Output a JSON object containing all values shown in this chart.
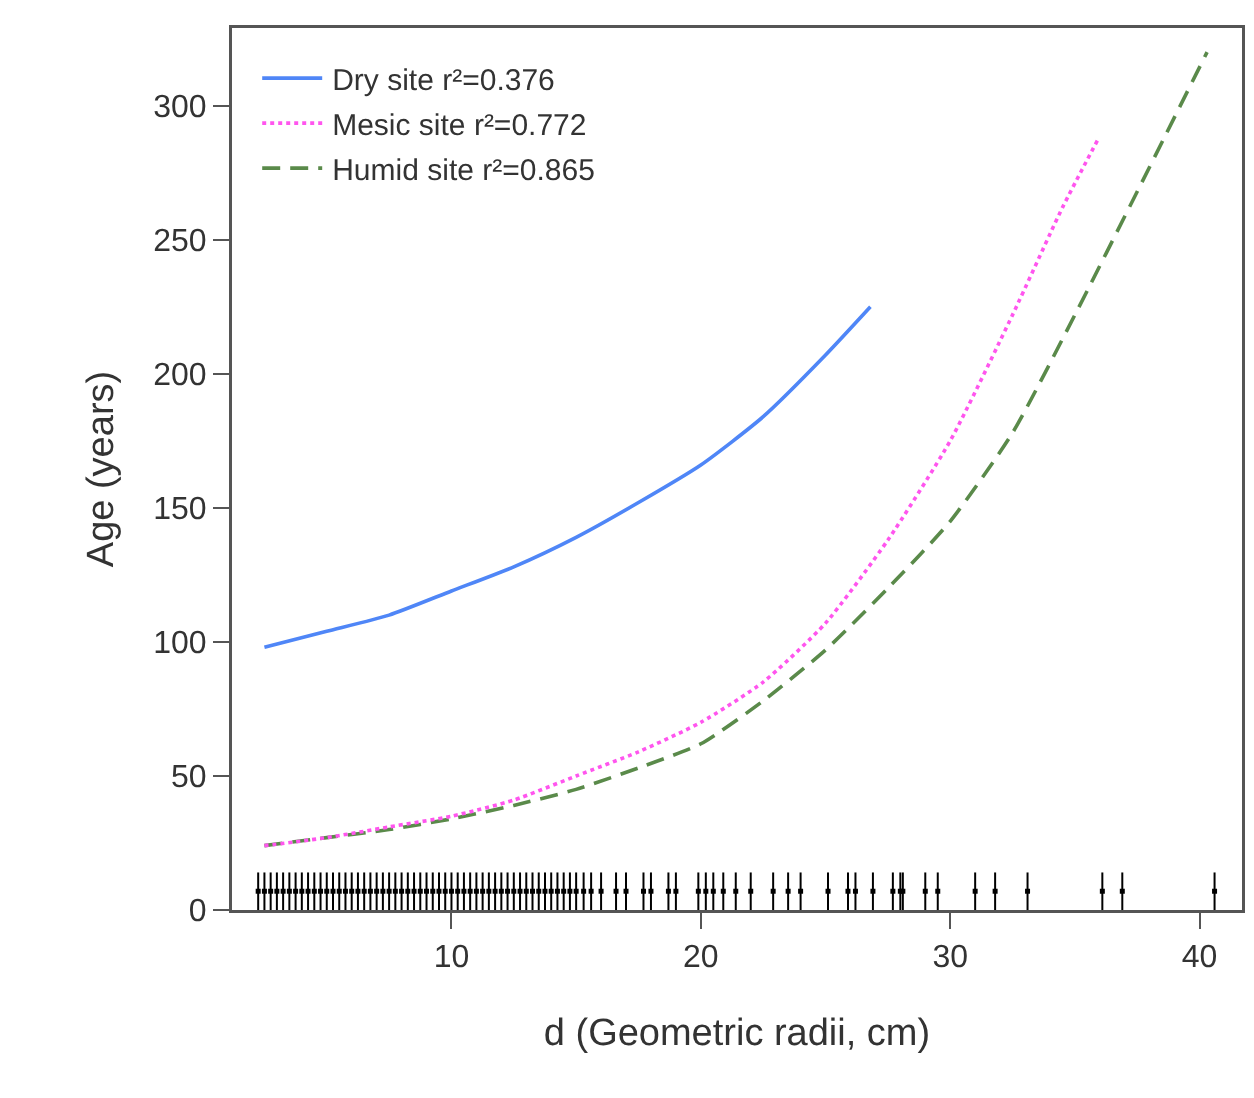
{
  "chart_data": {
    "type": "line",
    "xlabel": "d (Geometric radii, cm)",
    "ylabel": "Age (years)",
    "xlim": [
      1.2,
      41.7
    ],
    "ylim": [
      0,
      329
    ],
    "xticks": [
      10,
      20,
      30,
      40
    ],
    "yticks": [
      0,
      50,
      100,
      150,
      200,
      250,
      300
    ],
    "grid": false,
    "legend": "top left",
    "marker": "none",
    "series": [
      {
        "name": "Dry site r²=0.376",
        "color": "#4f86f7",
        "line_style": "solid",
        "x": [
          2.5,
          5,
          7.5,
          10,
          12.5,
          15,
          17.5,
          20,
          22.5,
          25,
          26.8
        ],
        "values": [
          98,
          104,
          110,
          119,
          128,
          139,
          152,
          166,
          184,
          207,
          225
        ]
      },
      {
        "name": "Mesic site r²=0.772",
        "color": "#ff55ee",
        "line_style": "dotted",
        "x": [
          2.5,
          5,
          7.5,
          10,
          12.5,
          15,
          17.5,
          20,
          22.5,
          25,
          27.5,
          30,
          32.5,
          34.5,
          35.9
        ],
        "values": [
          24,
          27,
          31,
          35,
          41,
          50,
          59,
          70,
          85,
          107,
          138,
          175,
          222,
          262,
          287
        ]
      },
      {
        "name": "Humid site r²=0.865",
        "color": "#5a8a4a",
        "line_style": "dashed",
        "x": [
          2.5,
          5,
          7.5,
          10,
          12.5,
          15,
          17.5,
          20,
          22.5,
          25,
          27.5,
          30,
          32.5,
          35,
          37.5,
          40.3
        ],
        "values": [
          24,
          27,
          30,
          34,
          39,
          45,
          53,
          62,
          78,
          97,
          120,
          145,
          178,
          222,
          268,
          320
        ]
      },
      {
        "type": "scatter",
        "color": "#000000",
        "marker": "square",
        "x": [
          2.25,
          2.5,
          2.75,
          3,
          3.25,
          3.5,
          3.75,
          4,
          4.25,
          4.5,
          4.75,
          5,
          5.25,
          5.5,
          5.75,
          6,
          6.25,
          6.5,
          6.75,
          7,
          7.25,
          7.5,
          7.75,
          8,
          8.25,
          8.5,
          8.75,
          9,
          9.25,
          9.5,
          9.75,
          10,
          10.25,
          10.5,
          10.75,
          11,
          11.25,
          11.5,
          11.75,
          12,
          12.25,
          12.5,
          12.75,
          13,
          13.25,
          13.5,
          13.75,
          14,
          14.25,
          14.5,
          14.75,
          15,
          15.3,
          15.6,
          16,
          16.6,
          17,
          17.7,
          18,
          18.7,
          19,
          19.9,
          20.2,
          20.5,
          20.9,
          21.4,
          22,
          22.9,
          23.5,
          24,
          25.1,
          25.9,
          26.2,
          26.9,
          27.7,
          28,
          28.1,
          29,
          29.5,
          31,
          31.8,
          33.1,
          36.1,
          36.9,
          40.6
        ],
        "values": [
          7,
          7,
          7,
          7,
          7,
          7,
          7,
          7,
          7,
          7,
          7,
          7,
          7,
          7,
          7,
          7,
          7,
          7,
          7,
          7,
          7,
          7,
          7,
          7,
          7,
          7,
          7,
          7,
          7,
          7,
          7,
          7,
          7,
          7,
          7,
          7,
          7,
          7,
          7,
          7,
          7,
          7,
          7,
          7,
          7,
          7,
          7,
          7,
          7,
          7,
          7,
          7,
          7,
          7,
          7,
          7,
          7,
          7,
          7,
          7,
          7,
          7,
          7,
          7,
          7,
          7,
          7,
          7,
          7,
          7,
          7,
          7,
          7,
          7,
          7,
          7,
          7,
          7,
          7,
          7,
          7,
          7,
          7,
          7,
          7
        ],
        "errors": [
          7,
          7,
          7,
          7,
          7,
          7,
          7,
          7,
          7,
          7,
          7,
          7,
          7,
          7,
          7,
          7,
          7,
          7,
          7,
          7,
          7,
          7,
          7,
          7,
          7,
          7,
          7,
          7,
          7,
          7,
          7,
          7,
          7,
          7,
          7,
          7,
          7,
          7,
          7,
          7,
          7,
          7,
          7,
          7,
          7,
          7,
          7,
          7,
          7,
          7,
          7,
          7,
          7,
          7,
          7,
          7,
          7,
          7,
          7,
          7,
          7,
          7,
          7,
          7,
          7,
          7,
          7,
          7,
          7,
          7,
          7,
          7,
          7,
          7,
          7,
          7,
          7,
          7,
          7,
          7,
          7,
          7,
          7,
          7,
          7
        ]
      }
    ]
  }
}
